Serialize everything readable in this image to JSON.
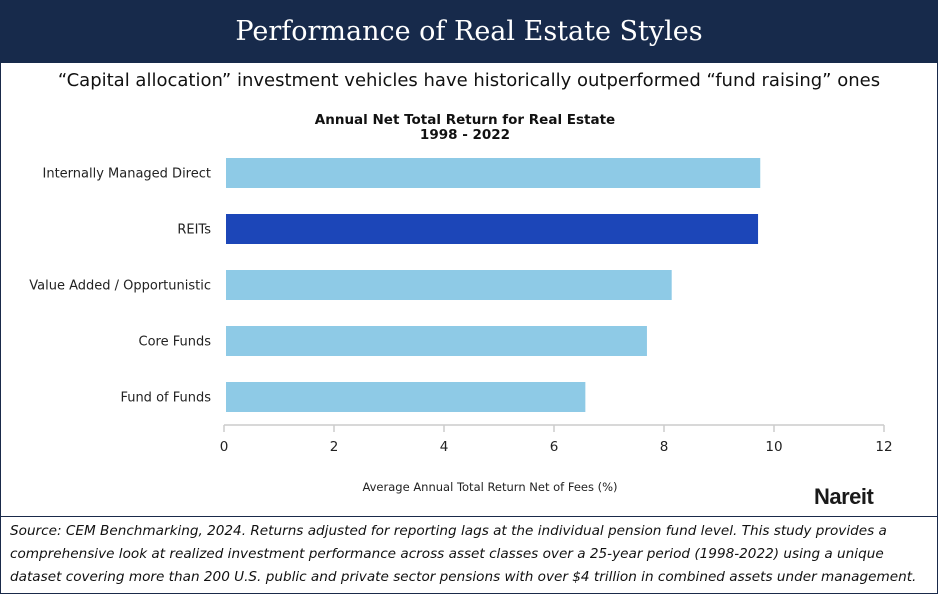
{
  "header": {
    "title": "Performance of Real Estate Styles"
  },
  "subtitle": "“Capital allocation” investment vehicles have historically outperformed “fund raising” ones",
  "logo": "Nareit",
  "source": "Source: CEM Benchmarking, 2024. Returns adjusted for reporting lags at the individual pension fund level. This study provides a comprehensive look at realized investment performance across asset classes over a 25-year period (1998-2022) using a unique dataset covering more than 200 U.S. public and private sector pensions with over $4 trillion in combined assets under management.",
  "colors": {
    "header": "#172a4b",
    "bar": "#8ecae6",
    "highlight": "#1c46b8"
  },
  "chart_data": {
    "type": "bar",
    "orientation": "horizontal",
    "title": "Annual Net Total Return for Real Estate",
    "subtitle": "1998 - 2022",
    "xlabel": "Average Annual Total Return Net of Fees (%)",
    "ylabel": "",
    "categories": [
      "Internally Managed Direct",
      "REITs",
      "Value Added / Opportunistic",
      "Core Funds",
      "Fund of Funds"
    ],
    "values": [
      9.75,
      9.71,
      8.14,
      7.69,
      6.57
    ],
    "highlight": "REITs",
    "xlim": [
      0,
      12
    ],
    "xticks": [
      "0",
      "2",
      "4",
      "6",
      "8",
      "10",
      "12"
    ],
    "grid": false
  }
}
